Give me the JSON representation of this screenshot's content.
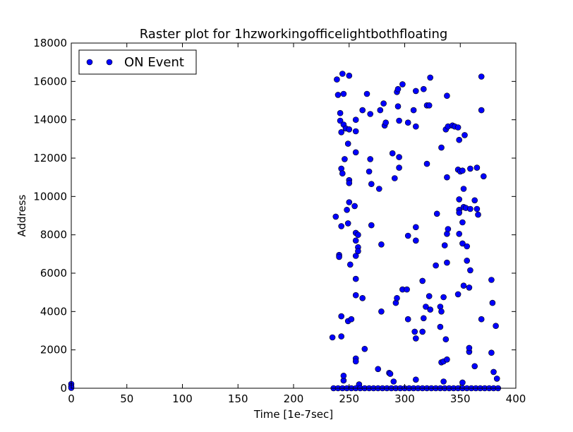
{
  "chart_data": {
    "type": "scatter",
    "title": "Raster plot for 1hzworkingofficelightbothfloating",
    "xlabel": "Time [1e-7sec]",
    "ylabel": "Address",
    "xlim": [
      0,
      400
    ],
    "ylim": [
      0,
      18000
    ],
    "xticks": [
      "0",
      "50",
      "100",
      "150",
      "200",
      "250",
      "300",
      "350",
      "400"
    ],
    "yticks": [
      "0",
      "2000",
      "4000",
      "6000",
      "8000",
      "10000",
      "12000",
      "14000",
      "16000",
      "18000"
    ],
    "grid": false,
    "legend_position": "top-left",
    "marker_color": "#0000ff",
    "series": [
      {
        "name": "ON Event",
        "points": [
          [
            0,
            220
          ],
          [
            0,
            100
          ],
          [
            0,
            20
          ],
          [
            235,
            2650
          ],
          [
            238,
            8950
          ],
          [
            239,
            16100
          ],
          [
            240,
            15300
          ],
          [
            241,
            6950
          ],
          [
            241,
            6850
          ],
          [
            242,
            13950
          ],
          [
            242,
            14350
          ],
          [
            243,
            8450
          ],
          [
            243,
            13350
          ],
          [
            243,
            11450
          ],
          [
            243,
            3750
          ],
          [
            243,
            2700
          ],
          [
            244,
            16400
          ],
          [
            244,
            11200
          ],
          [
            245,
            15350
          ],
          [
            245,
            13750
          ],
          [
            245,
            400
          ],
          [
            245,
            650
          ],
          [
            246,
            11950
          ],
          [
            247,
            13550
          ],
          [
            248,
            9300
          ],
          [
            249,
            8600
          ],
          [
            249,
            12750
          ],
          [
            249,
            3500
          ],
          [
            250,
            16300
          ],
          [
            250,
            10850
          ],
          [
            250,
            10700
          ],
          [
            250,
            9700
          ],
          [
            250,
            13500
          ],
          [
            251,
            6450
          ],
          [
            252,
            3600
          ],
          [
            255,
            9500
          ],
          [
            256,
            14000
          ],
          [
            256,
            13400
          ],
          [
            256,
            12300
          ],
          [
            256,
            8100
          ],
          [
            256,
            7700
          ],
          [
            256,
            6900
          ],
          [
            256,
            5700
          ],
          [
            256,
            4850
          ],
          [
            256,
            1550
          ],
          [
            256,
            1400
          ],
          [
            258,
            8000
          ],
          [
            258,
            7350
          ],
          [
            258,
            7150
          ],
          [
            259,
            200
          ],
          [
            262,
            14500
          ],
          [
            262,
            4700
          ],
          [
            264,
            2050
          ],
          [
            266,
            15350
          ],
          [
            268,
            11300
          ],
          [
            269,
            14300
          ],
          [
            269,
            11950
          ],
          [
            270,
            10650
          ],
          [
            270,
            8500
          ],
          [
            276,
            1000
          ],
          [
            277,
            10400
          ],
          [
            278,
            14500
          ],
          [
            279,
            4000
          ],
          [
            279,
            7500
          ],
          [
            281,
            14850
          ],
          [
            282,
            13700
          ],
          [
            283,
            13850
          ],
          [
            286,
            800
          ],
          [
            287,
            750
          ],
          [
            289,
            12250
          ],
          [
            290,
            350
          ],
          [
            291,
            10950
          ],
          [
            292,
            4450
          ],
          [
            293,
            15450
          ],
          [
            293,
            4700
          ],
          [
            294,
            15600
          ],
          [
            294,
            14700
          ],
          [
            295,
            13950
          ],
          [
            295,
            12050
          ],
          [
            295,
            11500
          ],
          [
            298,
            15850
          ],
          [
            298,
            5150
          ],
          [
            302,
            5150
          ],
          [
            303,
            13850
          ],
          [
            303,
            7950
          ],
          [
            303,
            3600
          ],
          [
            308,
            14500
          ],
          [
            309,
            2950
          ],
          [
            310,
            15500
          ],
          [
            310,
            13650
          ],
          [
            310,
            8400
          ],
          [
            310,
            7700
          ],
          [
            310,
            2600
          ],
          [
            310,
            450
          ],
          [
            316,
            5600
          ],
          [
            316,
            2950
          ],
          [
            317,
            15600
          ],
          [
            317,
            3650
          ],
          [
            319,
            4250
          ],
          [
            320,
            14750
          ],
          [
            320,
            11700
          ],
          [
            322,
            14750
          ],
          [
            322,
            4800
          ],
          [
            323,
            4100
          ],
          [
            323,
            16200
          ],
          [
            328,
            6400
          ],
          [
            329,
            9100
          ],
          [
            332,
            4250
          ],
          [
            332,
            3200
          ],
          [
            333,
            12550
          ],
          [
            333,
            4000
          ],
          [
            333,
            1350
          ],
          [
            335,
            4750
          ],
          [
            335,
            1400
          ],
          [
            335,
            350
          ],
          [
            336,
            7450
          ],
          [
            337,
            13500
          ],
          [
            337,
            2550
          ],
          [
            338,
            15250
          ],
          [
            338,
            11000
          ],
          [
            338,
            8050
          ],
          [
            338,
            6550
          ],
          [
            338,
            1500
          ],
          [
            339,
            8300
          ],
          [
            339,
            13650
          ],
          [
            343,
            13700
          ],
          [
            345,
            13650
          ],
          [
            348,
            13600
          ],
          [
            348,
            11400
          ],
          [
            348,
            4900
          ],
          [
            349,
            12950
          ],
          [
            349,
            9850
          ],
          [
            349,
            9300
          ],
          [
            349,
            9150
          ],
          [
            349,
            8050
          ],
          [
            350,
            11300
          ],
          [
            352,
            11350
          ],
          [
            352,
            8650
          ],
          [
            352,
            7550
          ],
          [
            352,
            300
          ],
          [
            353,
            10400
          ],
          [
            353,
            9450
          ],
          [
            353,
            5350
          ],
          [
            354,
            13200
          ],
          [
            355,
            9400
          ],
          [
            356,
            7400
          ],
          [
            356,
            6650
          ],
          [
            358,
            5250
          ],
          [
            358,
            1900
          ],
          [
            358,
            2100
          ],
          [
            359,
            11450
          ],
          [
            359,
            9350
          ],
          [
            359,
            6150
          ],
          [
            363,
            9800
          ],
          [
            363,
            1150
          ],
          [
            365,
            11500
          ],
          [
            365,
            9350
          ],
          [
            366,
            9050
          ],
          [
            369,
            16250
          ],
          [
            369,
            14500
          ],
          [
            369,
            3600
          ],
          [
            371,
            11050
          ],
          [
            378,
            5650
          ],
          [
            378,
            1850
          ],
          [
            379,
            4450
          ],
          [
            380,
            850
          ],
          [
            382,
            3250
          ],
          [
            383,
            500
          ],
          [
            236,
            0
          ],
          [
            240,
            0
          ],
          [
            244,
            0
          ],
          [
            248,
            0
          ],
          [
            252,
            0
          ],
          [
            256,
            0
          ],
          [
            260,
            0
          ],
          [
            264,
            0
          ],
          [
            268,
            0
          ],
          [
            272,
            0
          ],
          [
            276,
            0
          ],
          [
            280,
            0
          ],
          [
            284,
            0
          ],
          [
            288,
            0
          ],
          [
            292,
            0
          ],
          [
            296,
            0
          ],
          [
            300,
            0
          ],
          [
            304,
            0
          ],
          [
            308,
            0
          ],
          [
            312,
            0
          ],
          [
            316,
            0
          ],
          [
            320,
            0
          ],
          [
            324,
            0
          ],
          [
            328,
            0
          ],
          [
            332,
            0
          ],
          [
            336,
            0
          ],
          [
            340,
            0
          ],
          [
            344,
            0
          ],
          [
            348,
            0
          ],
          [
            352,
            0
          ],
          [
            356,
            0
          ],
          [
            360,
            0
          ],
          [
            364,
            0
          ],
          [
            368,
            0
          ],
          [
            372,
            0
          ],
          [
            376,
            0
          ],
          [
            380,
            0
          ],
          [
            384,
            0
          ]
        ]
      }
    ]
  }
}
